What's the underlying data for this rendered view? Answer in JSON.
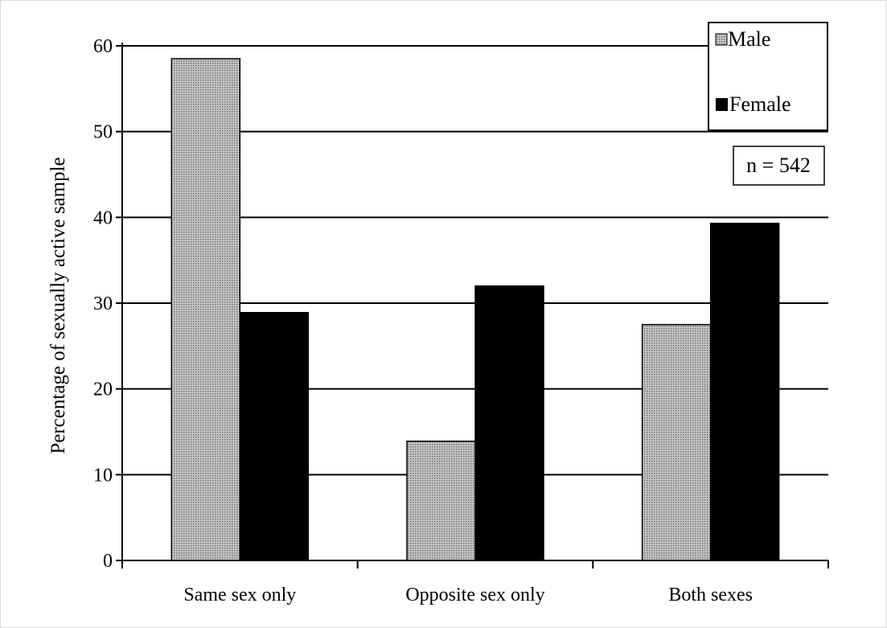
{
  "chart_data": {
    "type": "bar",
    "categories": [
      "Same sex only",
      "Opposite sex only",
      "Both sexes"
    ],
    "series": [
      {
        "name": "Male",
        "values": [
          58.5,
          13.9,
          27.5
        ],
        "pattern": "grid-gray"
      },
      {
        "name": "Female",
        "values": [
          28.9,
          32.0,
          39.3
        ],
        "pattern": "solid-black"
      }
    ],
    "ylabel": "Percentage of sexually active sample",
    "xlabel": "",
    "ylim": [
      0,
      60
    ],
    "yticks": [
      "0",
      "10",
      "20",
      "30",
      "40",
      "50",
      "60"
    ],
    "grid": true,
    "legend_position": "top-right",
    "annotation": "n = 542",
    "colors": {
      "male_fill": "#9a9a9a",
      "female_fill": "#000000",
      "grid": "#000000"
    }
  }
}
